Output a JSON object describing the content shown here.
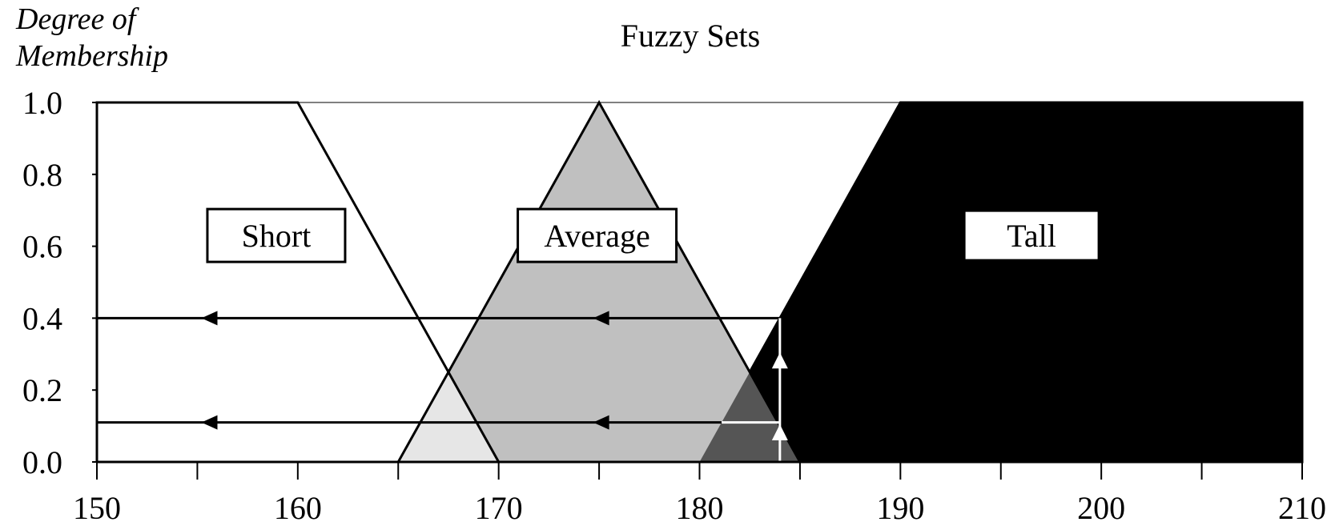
{
  "chart_data": {
    "type": "area",
    "title": "Fuzzy Sets",
    "ylabel": [
      "Degree of",
      "Membership"
    ],
    "xlabel": "",
    "xlim": [
      150,
      210
    ],
    "ylim": [
      0,
      1
    ],
    "x_ticks": [
      "150",
      "160",
      "170",
      "180",
      "190",
      "200",
      "210"
    ],
    "x_minor_ticks": [
      155,
      165,
      175,
      185,
      195,
      205
    ],
    "y_ticks": [
      "0.0",
      "0.2",
      "0.4",
      "0.6",
      "0.8",
      "1.0"
    ],
    "series": [
      {
        "name": "Short",
        "points": [
          [
            150,
            0
          ],
          [
            150,
            1
          ],
          [
            160,
            1
          ],
          [
            170,
            0
          ]
        ],
        "fill": "#ffffff",
        "label_pos": [
          155.5,
          0.63
        ]
      },
      {
        "name": "Average",
        "points": [
          [
            165,
            0
          ],
          [
            175,
            1
          ],
          [
            185,
            0
          ]
        ],
        "fill": "#c0c0c0",
        "label_pos": [
          174.9,
          0.63
        ]
      },
      {
        "name": "Tall",
        "points": [
          [
            180,
            0
          ],
          [
            190,
            1
          ],
          [
            210,
            1
          ],
          [
            210,
            0
          ]
        ],
        "fill": "#000000",
        "label_pos": [
          193.1,
          0.63
        ]
      }
    ],
    "overlap_fills": {
      "short_average": "#e6e6e6",
      "average_tall": "#555555"
    },
    "annotations": {
      "input_x": 184,
      "membership_levels": [
        0.4,
        0.11
      ],
      "level_line_start": [
        180,
        181.1
      ],
      "arrow_markers_x": [
        156,
        175.5
      ]
    },
    "colors": {
      "axis": "#000000",
      "gridline": "#000000",
      "background": "#ffffff",
      "arrow_white": "#ffffff"
    }
  }
}
